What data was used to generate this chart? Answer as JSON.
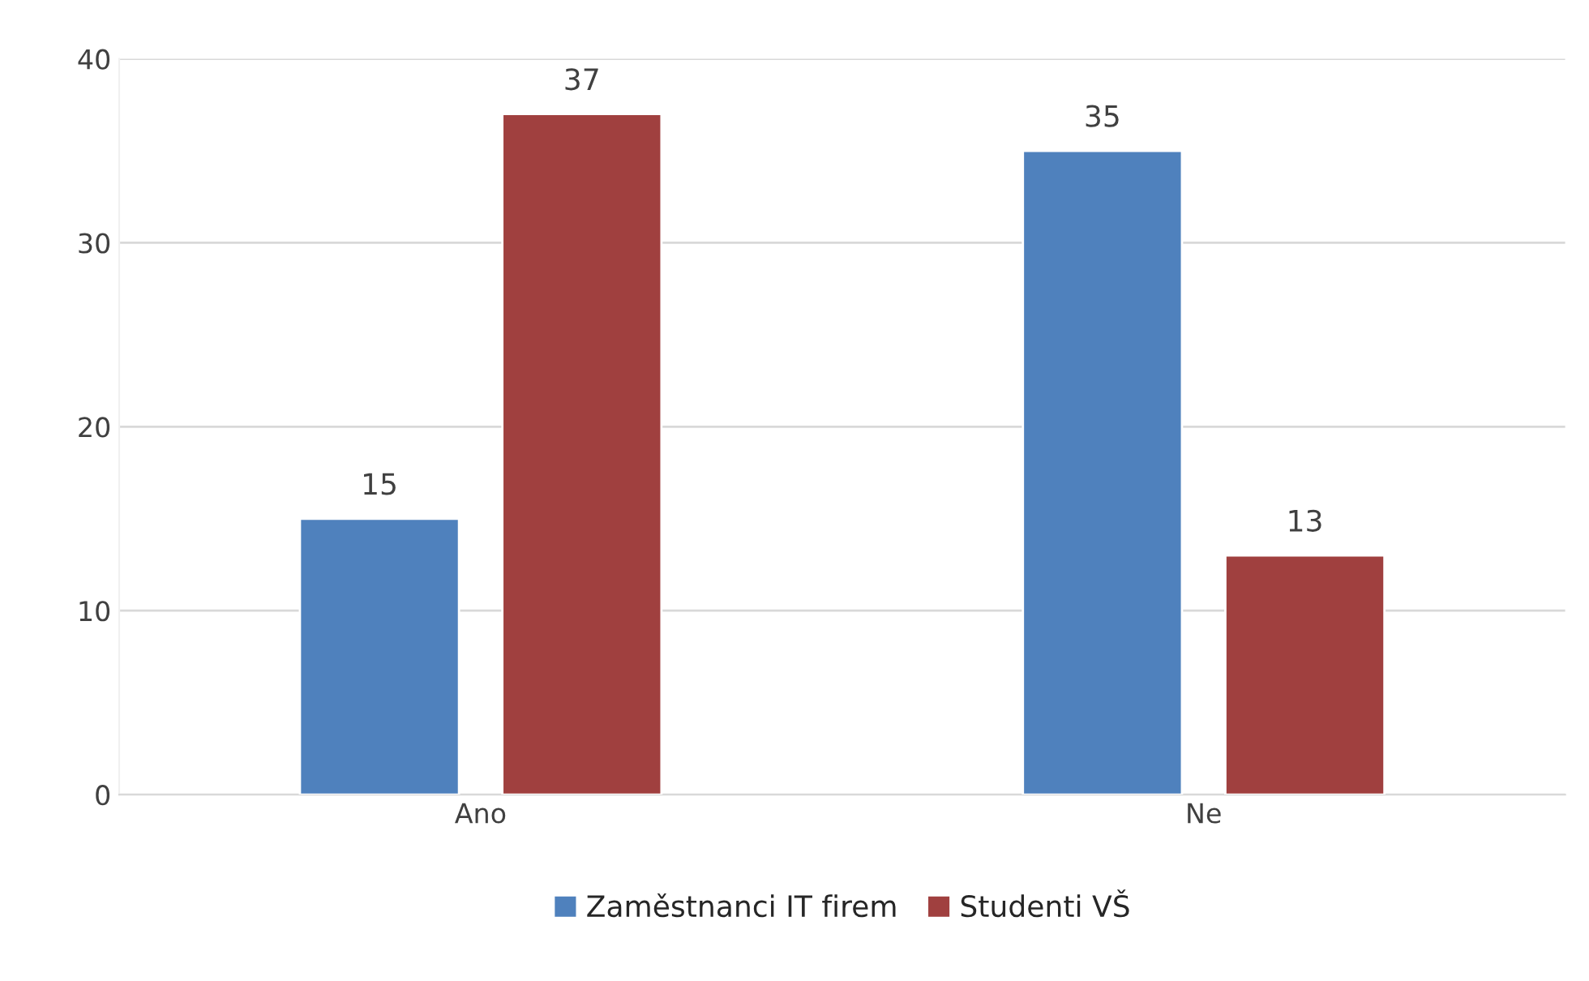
{
  "chart_data": {
    "type": "bar",
    "categories": [
      "Ano",
      "Ne"
    ],
    "series": [
      {
        "name": "Zaměstnanci IT firem",
        "color": "#4f81bd",
        "values": [
          15,
          35
        ]
      },
      {
        "name": "Studenti VŠ",
        "color": "#a0403f",
        "values": [
          37,
          13
        ]
      }
    ],
    "ylim": [
      0,
      40
    ],
    "yticks": [
      0,
      10,
      20,
      30,
      40
    ],
    "grid": "y",
    "legend": "bottom",
    "data_labels": true
  }
}
